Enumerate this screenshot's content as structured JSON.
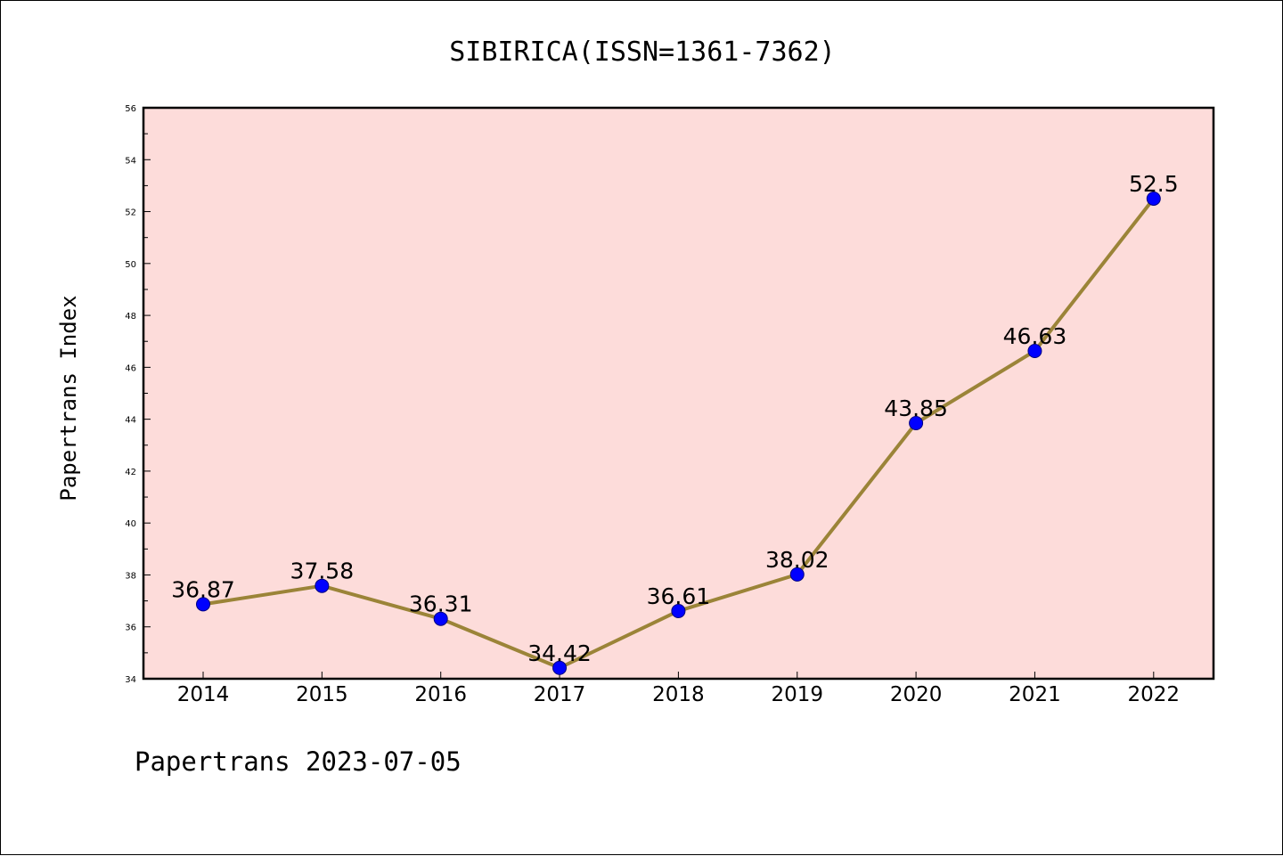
{
  "colors": {
    "plot_background": "#fddcda",
    "line": "#9b8438",
    "marker_fill": "#0000ff",
    "marker_stroke": "#000080",
    "axis": "#000000"
  },
  "chart_data": {
    "type": "line",
    "title": "SIBIRICA(ISSN=1361-7362)",
    "xlabel": "",
    "ylabel": "Papertrans Index",
    "categories": [
      "2014",
      "2015",
      "2016",
      "2017",
      "2018",
      "2019",
      "2020",
      "2021",
      "2022"
    ],
    "series": [
      {
        "values": [
          36.87,
          37.58,
          36.31,
          34.42,
          36.61,
          38.02,
          43.85,
          46.63,
          52.5
        ],
        "data_labels": [
          "36.87",
          "37.58",
          "36.31",
          "34.42",
          "36.61",
          "38.02",
          "43.85",
          "46.63",
          "52.5"
        ]
      }
    ],
    "ylim": [
      34,
      56
    ],
    "y_ticks": [
      "34",
      "36",
      "38",
      "40",
      "42",
      "44",
      "46",
      "48",
      "50",
      "52",
      "54",
      "56"
    ],
    "grid": false,
    "legend": "none"
  },
  "footer": {
    "text": "Papertrans 2023-07-05"
  }
}
